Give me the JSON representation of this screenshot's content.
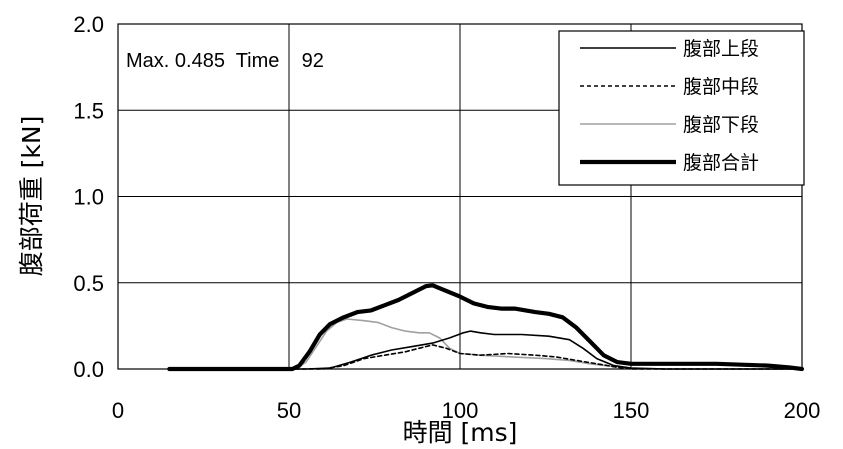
{
  "chart_data": {
    "type": "line",
    "title": "",
    "xlabel": "時間 [ms]",
    "ylabel": "腹部荷重 [kN]",
    "xlim": [
      0,
      200
    ],
    "ylim": [
      0.0,
      2.0
    ],
    "x_ticks": [
      "0",
      "50",
      "100",
      "150",
      "200"
    ],
    "y_ticks": [
      "0.0",
      "0.5",
      "1.0",
      "1.5",
      "2.0"
    ],
    "grid": true,
    "legend_position": "top-right",
    "annotation": "Max. 0.485  Time    92",
    "series": [
      {
        "name": "腹部上段",
        "color": "#000000",
        "style": "solid-thin",
        "points": [
          [
            15,
            0
          ],
          [
            55,
            0
          ],
          [
            62,
            0.005
          ],
          [
            68,
            0.04
          ],
          [
            74,
            0.08
          ],
          [
            80,
            0.11
          ],
          [
            86,
            0.13
          ],
          [
            92,
            0.15
          ],
          [
            97,
            0.18
          ],
          [
            101,
            0.21
          ],
          [
            103,
            0.22
          ],
          [
            106,
            0.21
          ],
          [
            110,
            0.2
          ],
          [
            118,
            0.2
          ],
          [
            126,
            0.19
          ],
          [
            132,
            0.17
          ],
          [
            136,
            0.12
          ],
          [
            140,
            0.06
          ],
          [
            145,
            0.02
          ],
          [
            150,
            0.005
          ],
          [
            160,
            0
          ],
          [
            200,
            0
          ]
        ]
      },
      {
        "name": "腹部中段",
        "color": "#000000",
        "style": "dashed",
        "points": [
          [
            15,
            0
          ],
          [
            60,
            0
          ],
          [
            66,
            0.02
          ],
          [
            72,
            0.06
          ],
          [
            78,
            0.08
          ],
          [
            84,
            0.1
          ],
          [
            88,
            0.12
          ],
          [
            92,
            0.14
          ],
          [
            96,
            0.12
          ],
          [
            100,
            0.09
          ],
          [
            106,
            0.08
          ],
          [
            114,
            0.09
          ],
          [
            122,
            0.08
          ],
          [
            128,
            0.07
          ],
          [
            134,
            0.05
          ],
          [
            140,
            0.03
          ],
          [
            146,
            0.01
          ],
          [
            150,
            0
          ],
          [
            200,
            0
          ]
        ]
      },
      {
        "name": "腹部下段",
        "color": "#a0a0a0",
        "style": "solid-thin",
        "points": [
          [
            15,
            0
          ],
          [
            52,
            0
          ],
          [
            55,
            0.04
          ],
          [
            58,
            0.13
          ],
          [
            61,
            0.22
          ],
          [
            64,
            0.27
          ],
          [
            67,
            0.29
          ],
          [
            72,
            0.28
          ],
          [
            76,
            0.27
          ],
          [
            80,
            0.24
          ],
          [
            84,
            0.22
          ],
          [
            88,
            0.21
          ],
          [
            91,
            0.21
          ],
          [
            94,
            0.18
          ],
          [
            97,
            0.12
          ],
          [
            100,
            0.09
          ],
          [
            106,
            0.08
          ],
          [
            115,
            0.07
          ],
          [
            125,
            0.06
          ],
          [
            132,
            0.05
          ],
          [
            138,
            0.03
          ],
          [
            145,
            0.015
          ],
          [
            150,
            0.005
          ],
          [
            160,
            0
          ],
          [
            200,
            0
          ]
        ]
      },
      {
        "name": "腹部合計",
        "color": "#000000",
        "style": "solid-thick",
        "points": [
          [
            15,
            0
          ],
          [
            51,
            0
          ],
          [
            53,
            0.02
          ],
          [
            56,
            0.1
          ],
          [
            59,
            0.2
          ],
          [
            62,
            0.26
          ],
          [
            66,
            0.3
          ],
          [
            70,
            0.33
          ],
          [
            74,
            0.34
          ],
          [
            78,
            0.37
          ],
          [
            82,
            0.4
          ],
          [
            86,
            0.44
          ],
          [
            90,
            0.48
          ],
          [
            92,
            0.485
          ],
          [
            95,
            0.46
          ],
          [
            100,
            0.42
          ],
          [
            104,
            0.38
          ],
          [
            108,
            0.36
          ],
          [
            112,
            0.35
          ],
          [
            116,
            0.35
          ],
          [
            122,
            0.33
          ],
          [
            126,
            0.32
          ],
          [
            130,
            0.3
          ],
          [
            134,
            0.24
          ],
          [
            138,
            0.16
          ],
          [
            142,
            0.08
          ],
          [
            146,
            0.04
          ],
          [
            150,
            0.03
          ],
          [
            160,
            0.03
          ],
          [
            175,
            0.03
          ],
          [
            190,
            0.02
          ],
          [
            196,
            0.01
          ],
          [
            200,
            0
          ]
        ]
      }
    ]
  }
}
